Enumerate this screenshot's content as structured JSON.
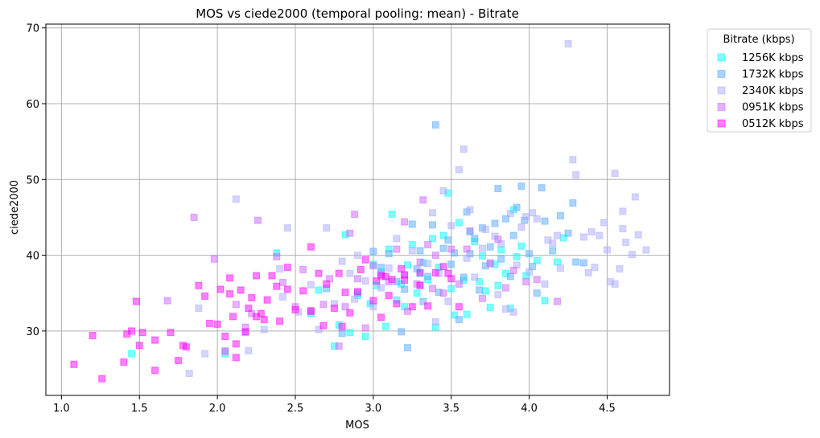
{
  "chart_data": {
    "type": "scatter",
    "title": "MOS vs ciede2000 (temporal pooling: mean) - Bitrate",
    "xlabel": "MOS",
    "ylabel": "ciede2000",
    "xlim": [
      0.9,
      4.9
    ],
    "ylim": [
      21.5,
      70.5
    ],
    "xticks": [
      "1.0",
      "1.5",
      "2.0",
      "2.5",
      "3.0",
      "3.5",
      "4.0",
      "4.5"
    ],
    "yticks": [
      "30",
      "40",
      "50",
      "60",
      "70"
    ],
    "grid": true,
    "legend": {
      "title": "Bitrate (kbps)",
      "placement": "outside-upper-right"
    },
    "series": [
      {
        "name": "1256K kbps",
        "color": "#00ffff",
        "points": [
          [
            1.45,
            27.0
          ],
          [
            2.05,
            27.0
          ],
          [
            2.38,
            40.3
          ],
          [
            2.6,
            32.3
          ],
          [
            2.65,
            35.4
          ],
          [
            2.75,
            28.0
          ],
          [
            2.78,
            30.8
          ],
          [
            2.82,
            42.7
          ],
          [
            2.85,
            29.8
          ],
          [
            2.9,
            34.7
          ],
          [
            2.95,
            29.3
          ],
          [
            2.98,
            33.6
          ],
          [
            3.0,
            38.8
          ],
          [
            3.02,
            36.0
          ],
          [
            3.05,
            37.8
          ],
          [
            3.08,
            30.6
          ],
          [
            3.1,
            40.8
          ],
          [
            3.12,
            45.4
          ],
          [
            3.15,
            34.1
          ],
          [
            3.18,
            36.2
          ],
          [
            3.2,
            33.2
          ],
          [
            3.22,
            38.7
          ],
          [
            3.25,
            41.4
          ],
          [
            3.28,
            35.0
          ],
          [
            3.3,
            37.6
          ],
          [
            3.32,
            39.0
          ],
          [
            3.35,
            36.8
          ],
          [
            3.38,
            42.2
          ],
          [
            3.4,
            30.5
          ],
          [
            3.42,
            38.4
          ],
          [
            3.45,
            42.6
          ],
          [
            3.48,
            48.2
          ],
          [
            3.5,
            35.6
          ],
          [
            3.52,
            32.1
          ],
          [
            3.55,
            44.3
          ],
          [
            3.58,
            36.7
          ],
          [
            3.6,
            32.2
          ],
          [
            3.62,
            43.1
          ],
          [
            3.65,
            41.8
          ],
          [
            3.68,
            36.5
          ],
          [
            3.7,
            39.9
          ],
          [
            3.72,
            35.3
          ],
          [
            3.75,
            33.1
          ],
          [
            3.78,
            38.8
          ],
          [
            3.8,
            36.0
          ],
          [
            3.82,
            40.7
          ],
          [
            3.85,
            37.6
          ],
          [
            3.88,
            33.0
          ],
          [
            3.9,
            46.0
          ],
          [
            3.92,
            39.8
          ],
          [
            3.95,
            41.2
          ],
          [
            3.98,
            37.3
          ],
          [
            4.05,
            39.3
          ],
          [
            4.1,
            34.0
          ],
          [
            4.18,
            39.1
          ],
          [
            4.22,
            42.3
          ]
        ]
      },
      {
        "name": "1732K kbps",
        "color": "#55aaff",
        "points": [
          [
            2.7,
            35.6
          ],
          [
            2.8,
            29.7
          ],
          [
            2.9,
            35.0
          ],
          [
            3.0,
            40.5
          ],
          [
            3.05,
            38.4
          ],
          [
            3.1,
            40.2
          ],
          [
            3.15,
            36.5
          ],
          [
            3.18,
            29.9
          ],
          [
            3.2,
            35.5
          ],
          [
            3.22,
            27.8
          ],
          [
            3.25,
            44.1
          ],
          [
            3.28,
            38.2
          ],
          [
            3.3,
            40.6
          ],
          [
            3.32,
            33.9
          ],
          [
            3.35,
            37.2
          ],
          [
            3.38,
            44.0
          ],
          [
            3.4,
            57.2
          ],
          [
            3.42,
            35.1
          ],
          [
            3.45,
            40.9
          ],
          [
            3.48,
            42.0
          ],
          [
            3.5,
            38.8
          ],
          [
            3.52,
            40.3
          ],
          [
            3.55,
            31.5
          ],
          [
            3.58,
            37.1
          ],
          [
            3.6,
            45.7
          ],
          [
            3.62,
            40.2
          ],
          [
            3.65,
            42.2
          ],
          [
            3.68,
            35.4
          ],
          [
            3.7,
            43.6
          ],
          [
            3.72,
            38.6
          ],
          [
            3.75,
            41.1
          ],
          [
            3.78,
            44.2
          ],
          [
            3.8,
            48.8
          ],
          [
            3.82,
            39.5
          ],
          [
            3.85,
            44.8
          ],
          [
            3.88,
            37.2
          ],
          [
            3.9,
            42.6
          ],
          [
            3.92,
            46.3
          ],
          [
            3.95,
            49.1
          ],
          [
            3.97,
            44.6
          ],
          [
            4.0,
            40.2
          ],
          [
            4.02,
            38.5
          ],
          [
            4.05,
            35.0
          ],
          [
            4.08,
            48.9
          ],
          [
            4.1,
            44.5
          ],
          [
            4.15,
            40.6
          ],
          [
            4.2,
            45.2
          ],
          [
            4.25,
            42.9
          ],
          [
            4.28,
            46.9
          ],
          [
            4.3,
            39.1
          ],
          [
            4.35,
            39.0
          ]
        ]
      },
      {
        "name": "2340K kbps",
        "color": "#aaaaff",
        "points": [
          [
            1.82,
            24.4
          ],
          [
            1.88,
            33.0
          ],
          [
            1.92,
            27.0
          ],
          [
            2.05,
            27.4
          ],
          [
            2.12,
            47.4
          ],
          [
            2.18,
            29.8
          ],
          [
            2.2,
            27.4
          ],
          [
            2.3,
            30.2
          ],
          [
            2.4,
            38.2
          ],
          [
            2.42,
            34.5
          ],
          [
            2.45,
            43.6
          ],
          [
            2.52,
            32.5
          ],
          [
            2.6,
            36.1
          ],
          [
            2.65,
            30.2
          ],
          [
            2.7,
            43.6
          ],
          [
            2.75,
            33.6
          ],
          [
            2.8,
            39.2
          ],
          [
            2.85,
            37.6
          ],
          [
            2.88,
            34.2
          ],
          [
            2.9,
            40.0
          ],
          [
            2.95,
            36.6
          ],
          [
            3.0,
            33.2
          ],
          [
            3.05,
            35.7
          ],
          [
            3.1,
            38.3
          ],
          [
            3.15,
            42.2
          ],
          [
            3.2,
            37.4
          ],
          [
            3.25,
            40.6
          ],
          [
            3.3,
            36.1
          ],
          [
            3.35,
            38.9
          ],
          [
            3.38,
            45.6
          ],
          [
            3.4,
            31.2
          ],
          [
            3.42,
            37.6
          ],
          [
            3.45,
            48.5
          ],
          [
            3.48,
            33.9
          ],
          [
            3.5,
            43.9
          ],
          [
            3.55,
            51.3
          ],
          [
            3.58,
            54.0
          ],
          [
            3.6,
            39.6
          ],
          [
            3.62,
            46.0
          ],
          [
            3.65,
            37.1
          ],
          [
            3.7,
            40.9
          ],
          [
            3.72,
            43.4
          ],
          [
            3.75,
            39.0
          ],
          [
            3.78,
            42.5
          ],
          [
            3.8,
            34.8
          ],
          [
            3.82,
            41.5
          ],
          [
            3.85,
            32.9
          ],
          [
            3.88,
            45.5
          ],
          [
            3.9,
            32.5
          ],
          [
            3.92,
            38.7
          ],
          [
            3.95,
            43.7
          ],
          [
            3.98,
            45.1
          ],
          [
            4.0,
            37.8
          ],
          [
            4.02,
            45.6
          ],
          [
            4.05,
            44.8
          ],
          [
            4.1,
            36.2
          ],
          [
            4.12,
            42.0
          ],
          [
            4.15,
            41.6
          ],
          [
            4.18,
            42.6
          ],
          [
            4.2,
            38.3
          ],
          [
            4.25,
            67.9
          ],
          [
            4.28,
            52.6
          ],
          [
            4.3,
            50.6
          ],
          [
            4.35,
            42.4
          ],
          [
            4.38,
            37.7
          ],
          [
            4.4,
            43.1
          ],
          [
            4.42,
            38.4
          ],
          [
            4.45,
            42.6
          ],
          [
            4.48,
            44.3
          ],
          [
            4.5,
            40.7
          ],
          [
            4.52,
            36.5
          ],
          [
            4.55,
            50.8
          ],
          [
            4.58,
            38.2
          ],
          [
            4.6,
            43.5
          ],
          [
            4.62,
            41.7
          ],
          [
            4.66,
            40.1
          ],
          [
            4.68,
            47.7
          ],
          [
            4.7,
            42.7
          ],
          [
            4.75,
            40.7
          ],
          [
            4.55,
            36.2
          ],
          [
            4.6,
            45.8
          ]
        ]
      },
      {
        "name": "0951K kbps",
        "color": "#cc66ff",
        "points": [
          [
            1.68,
            34.0
          ],
          [
            1.85,
            45.0
          ],
          [
            1.98,
            39.5
          ],
          [
            2.12,
            33.5
          ],
          [
            2.18,
            30.5
          ],
          [
            2.26,
            44.6
          ],
          [
            2.38,
            39.8
          ],
          [
            2.42,
            36.4
          ],
          [
            2.5,
            33.2
          ],
          [
            2.55,
            38.1
          ],
          [
            2.6,
            32.7
          ],
          [
            2.68,
            33.5
          ],
          [
            2.72,
            36.9
          ],
          [
            2.78,
            28.0
          ],
          [
            2.82,
            33.2
          ],
          [
            2.85,
            42.9
          ],
          [
            2.88,
            45.4
          ],
          [
            2.9,
            36.9
          ],
          [
            2.95,
            30.4
          ],
          [
            3.0,
            38.6
          ],
          [
            3.05,
            37.2
          ],
          [
            3.1,
            36.5
          ],
          [
            3.15,
            40.8
          ],
          [
            3.2,
            44.4
          ],
          [
            3.22,
            32.6
          ],
          [
            3.28,
            36.2
          ],
          [
            3.3,
            39.1
          ],
          [
            3.32,
            47.3
          ],
          [
            3.35,
            41.4
          ],
          [
            3.38,
            35.6
          ],
          [
            3.4,
            40.0
          ],
          [
            3.45,
            35.0
          ],
          [
            3.5,
            40.8
          ],
          [
            3.55,
            36.2
          ],
          [
            3.6,
            40.8
          ],
          [
            3.62,
            43.2
          ],
          [
            3.7,
            34.3
          ],
          [
            3.75,
            38.9
          ],
          [
            3.8,
            42.1
          ],
          [
            3.85,
            35.7
          ],
          [
            3.9,
            38.0
          ],
          [
            3.98,
            36.5
          ],
          [
            4.05,
            36.8
          ],
          [
            4.18,
            33.9
          ],
          [
            2.05,
            27.3
          ],
          [
            2.22,
            32.3
          ]
        ]
      },
      {
        "name": "0512K kbps",
        "color": "#ff00ff",
        "points": [
          [
            1.08,
            25.6
          ],
          [
            1.2,
            29.4
          ],
          [
            1.26,
            23.7
          ],
          [
            1.4,
            25.9
          ],
          [
            1.42,
            29.6
          ],
          [
            1.45,
            30.0
          ],
          [
            1.48,
            33.9
          ],
          [
            1.5,
            28.1
          ],
          [
            1.52,
            29.8
          ],
          [
            1.6,
            24.8
          ],
          [
            1.6,
            28.8
          ],
          [
            1.7,
            29.8
          ],
          [
            1.75,
            26.1
          ],
          [
            1.78,
            28.1
          ],
          [
            1.8,
            27.9
          ],
          [
            1.88,
            36.0
          ],
          [
            1.92,
            34.6
          ],
          [
            1.95,
            31.0
          ],
          [
            2.0,
            30.9
          ],
          [
            2.02,
            35.5
          ],
          [
            2.05,
            29.3
          ],
          [
            2.08,
            34.9
          ],
          [
            2.08,
            37.0
          ],
          [
            2.1,
            31.9
          ],
          [
            2.12,
            26.5
          ],
          [
            2.12,
            28.3
          ],
          [
            2.15,
            35.4
          ],
          [
            2.18,
            29.9
          ],
          [
            2.2,
            33.0
          ],
          [
            2.22,
            34.4
          ],
          [
            2.25,
            31.9
          ],
          [
            2.25,
            37.3
          ],
          [
            2.28,
            32.3
          ],
          [
            2.3,
            31.5
          ],
          [
            2.32,
            34.1
          ],
          [
            2.35,
            37.3
          ],
          [
            2.38,
            35.9
          ],
          [
            2.4,
            31.3
          ],
          [
            2.45,
            35.5
          ],
          [
            2.45,
            38.4
          ],
          [
            2.5,
            32.8
          ],
          [
            2.55,
            35.3
          ],
          [
            2.6,
            32.6
          ],
          [
            2.6,
            41.1
          ],
          [
            2.65,
            37.6
          ],
          [
            2.68,
            30.7
          ],
          [
            2.7,
            36.2
          ],
          [
            2.75,
            33.0
          ],
          [
            2.78,
            37.6
          ],
          [
            2.8,
            30.6
          ],
          [
            2.82,
            35.1
          ],
          [
            2.85,
            32.4
          ],
          [
            2.9,
            35.2
          ],
          [
            2.92,
            38.1
          ],
          [
            2.95,
            39.4
          ],
          [
            3.0,
            34.0
          ],
          [
            3.02,
            36.6
          ],
          [
            3.05,
            31.8
          ],
          [
            3.08,
            37.2
          ],
          [
            3.1,
            34.7
          ],
          [
            3.12,
            36.8
          ],
          [
            3.15,
            33.6
          ],
          [
            3.18,
            38.2
          ],
          [
            3.2,
            36.7
          ],
          [
            3.25,
            33.2
          ],
          [
            3.3,
            37.7
          ],
          [
            3.35,
            33.3
          ],
          [
            3.4,
            37.7
          ],
          [
            3.45,
            38.5
          ],
          [
            3.5,
            36.9
          ],
          [
            3.55,
            33.2
          ],
          [
            3.48,
            37.6
          ],
          [
            3.3,
            36.0
          ],
          [
            3.2,
            37.4
          ],
          [
            3.05,
            37.4
          ]
        ]
      }
    ]
  }
}
